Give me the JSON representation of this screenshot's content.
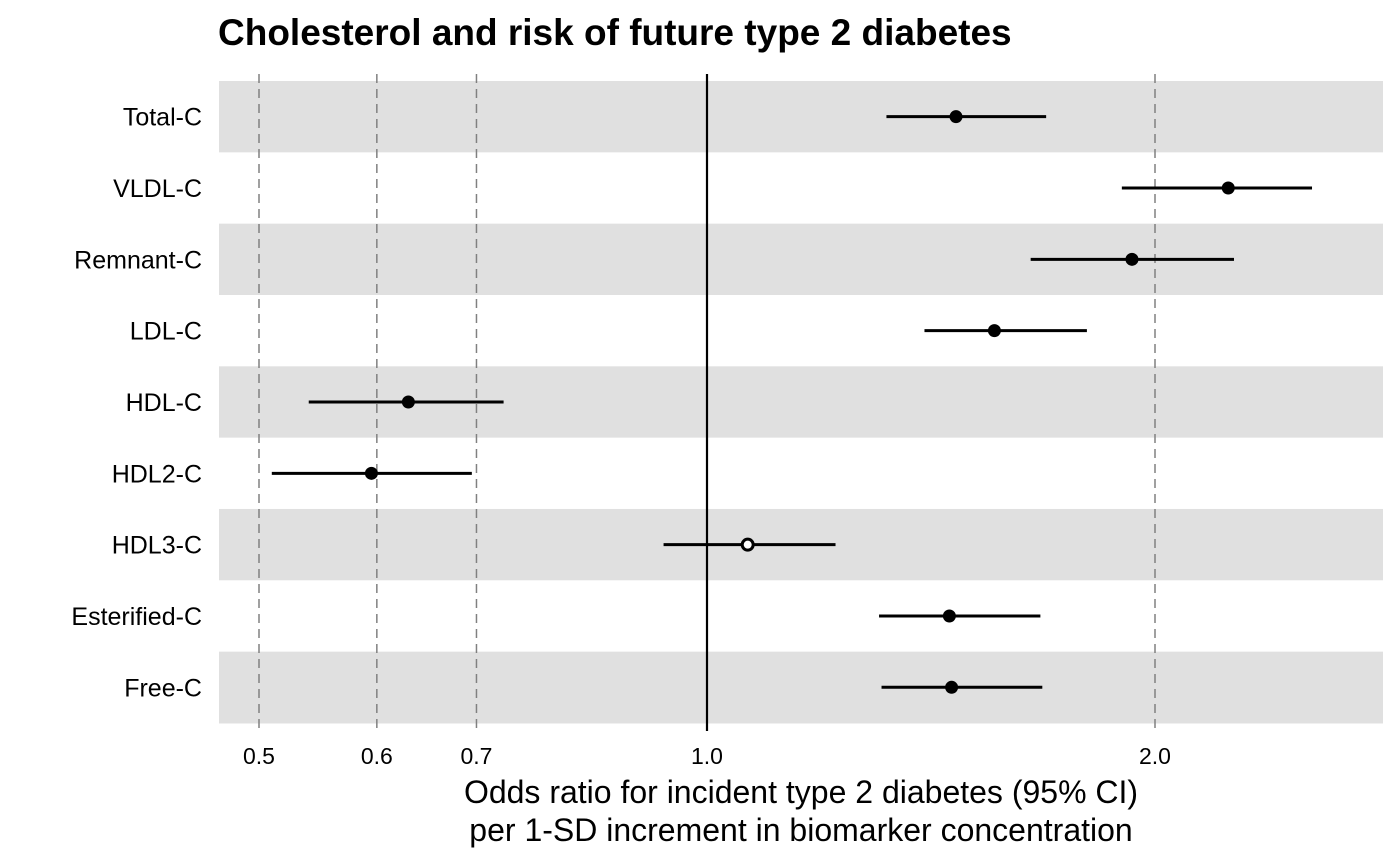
{
  "chart_data": {
    "type": "forest",
    "title": "Cholesterol and risk of future type 2 diabetes",
    "xlabel_lines": [
      "Odds ratio for incident type 2 diabetes (95% CI)",
      "per 1-SD increment in biomarker concentration"
    ],
    "x_scale": "log",
    "xlim": [
      0.48,
      2.6
    ],
    "x_ticks": [
      0.5,
      0.6,
      0.7,
      1.0,
      2.0
    ],
    "x_tick_labels": [
      "0.5",
      "0.6",
      "0.7",
      "1.0",
      "2.0"
    ],
    "dashed_reference_lines": [
      0.5,
      0.6,
      0.7,
      2.0
    ],
    "null_line": 1.0,
    "row_banding": "alternating grey/white, starting grey",
    "rows": [
      {
        "label": "Total-C",
        "or": 1.47,
        "lower": 1.32,
        "upper": 1.69,
        "significant": true
      },
      {
        "label": "VLDL-C",
        "or": 2.24,
        "lower": 1.9,
        "upper": 2.55,
        "significant": true
      },
      {
        "label": "Remnant-C",
        "or": 1.93,
        "lower": 1.65,
        "upper": 2.26,
        "significant": true
      },
      {
        "label": "LDL-C",
        "or": 1.56,
        "lower": 1.4,
        "upper": 1.8,
        "significant": true
      },
      {
        "label": "HDL-C",
        "or": 0.63,
        "lower": 0.54,
        "upper": 0.73,
        "significant": true
      },
      {
        "label": "HDL2-C",
        "or": 0.595,
        "lower": 0.51,
        "upper": 0.695,
        "significant": true
      },
      {
        "label": "HDL3-C",
        "or": 1.065,
        "lower": 0.935,
        "upper": 1.22,
        "significant": false
      },
      {
        "label": "Esterified-C",
        "or": 1.455,
        "lower": 1.305,
        "upper": 1.675,
        "significant": true
      },
      {
        "label": "Free-C",
        "or": 1.46,
        "lower": 1.31,
        "upper": 1.68,
        "significant": true
      }
    ]
  },
  "colors": {
    "band_grey": "#e0e0e0",
    "band_white": "#ffffff",
    "ink": "#000000",
    "dashed_line": "#808080"
  }
}
